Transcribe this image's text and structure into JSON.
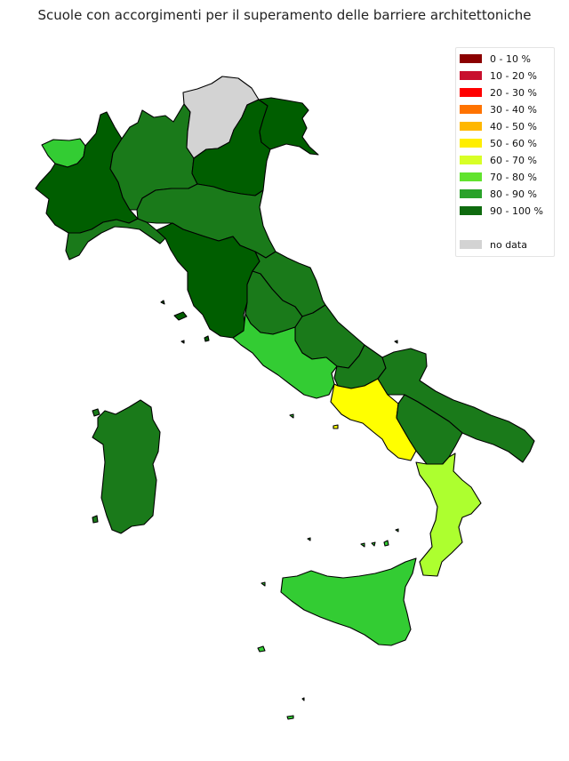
{
  "title": "Scuole con accorgimenti per il superamento delle barriere architettoniche",
  "legend": [
    {
      "label": "0 - 10 %",
      "color": "#8b0000"
    },
    {
      "label": "10 - 20 %",
      "color": "#c8102e"
    },
    {
      "label": "20 - 30 %",
      "color": "#ff0000"
    },
    {
      "label": "30 - 40 %",
      "color": "#ff7300"
    },
    {
      "label": "40 - 50 %",
      "color": "#ffb700"
    },
    {
      "label": "50 - 60 %",
      "color": "#ffee00"
    },
    {
      "label": "60 - 70 %",
      "color": "#d8ff26"
    },
    {
      "label": "70 - 80 %",
      "color": "#61e32e"
    },
    {
      "label": "80 - 90 %",
      "color": "#2aa22a"
    },
    {
      "label": "90 - 100 %",
      "color": "#0f6b0f"
    },
    {
      "label": "no data",
      "color": "#d3d3d3"
    }
  ],
  "regions": [
    {
      "name": "Valle d'Aosta",
      "class": "70 - 80 %",
      "fill": "#33cc33"
    },
    {
      "name": "Piemonte",
      "class": "90 - 100 %",
      "fill": "#005e00"
    },
    {
      "name": "Liguria",
      "class": "80 - 90 %",
      "fill": "#1a7a1a"
    },
    {
      "name": "Lombardia",
      "class": "80 - 90 %",
      "fill": "#1a7a1a"
    },
    {
      "name": "Trentino-Alto Adige",
      "class": "no data",
      "fill": "#d3d3d3"
    },
    {
      "name": "Veneto",
      "class": "90 - 100 %",
      "fill": "#005e00"
    },
    {
      "name": "Friuli-Venezia Giulia",
      "class": "90 - 100 %",
      "fill": "#005e00"
    },
    {
      "name": "Emilia-Romagna",
      "class": "80 - 90 %",
      "fill": "#1a7a1a"
    },
    {
      "name": "Toscana",
      "class": "90 - 100 %",
      "fill": "#005e00"
    },
    {
      "name": "Umbria",
      "class": "80 - 90 %",
      "fill": "#1a7a1a"
    },
    {
      "name": "Marche",
      "class": "80 - 90 %",
      "fill": "#1a7a1a"
    },
    {
      "name": "Lazio",
      "class": "70 - 80 %",
      "fill": "#33cc33"
    },
    {
      "name": "Abruzzo",
      "class": "80 - 90 %",
      "fill": "#1a7a1a"
    },
    {
      "name": "Molise",
      "class": "80 - 90 %",
      "fill": "#1a7a1a"
    },
    {
      "name": "Campania",
      "class": "50 - 60 %",
      "fill": "#ffff00"
    },
    {
      "name": "Puglia",
      "class": "80 - 90 %",
      "fill": "#1a7a1a"
    },
    {
      "name": "Basilicata",
      "class": "80 - 90 %",
      "fill": "#1a7a1a"
    },
    {
      "name": "Calabria",
      "class": "60 - 70 %",
      "fill": "#adff2f"
    },
    {
      "name": "Sicilia",
      "class": "70 - 80 %",
      "fill": "#33cc33"
    },
    {
      "name": "Sardegna",
      "class": "80 - 90 %",
      "fill": "#1a7a1a"
    }
  ]
}
